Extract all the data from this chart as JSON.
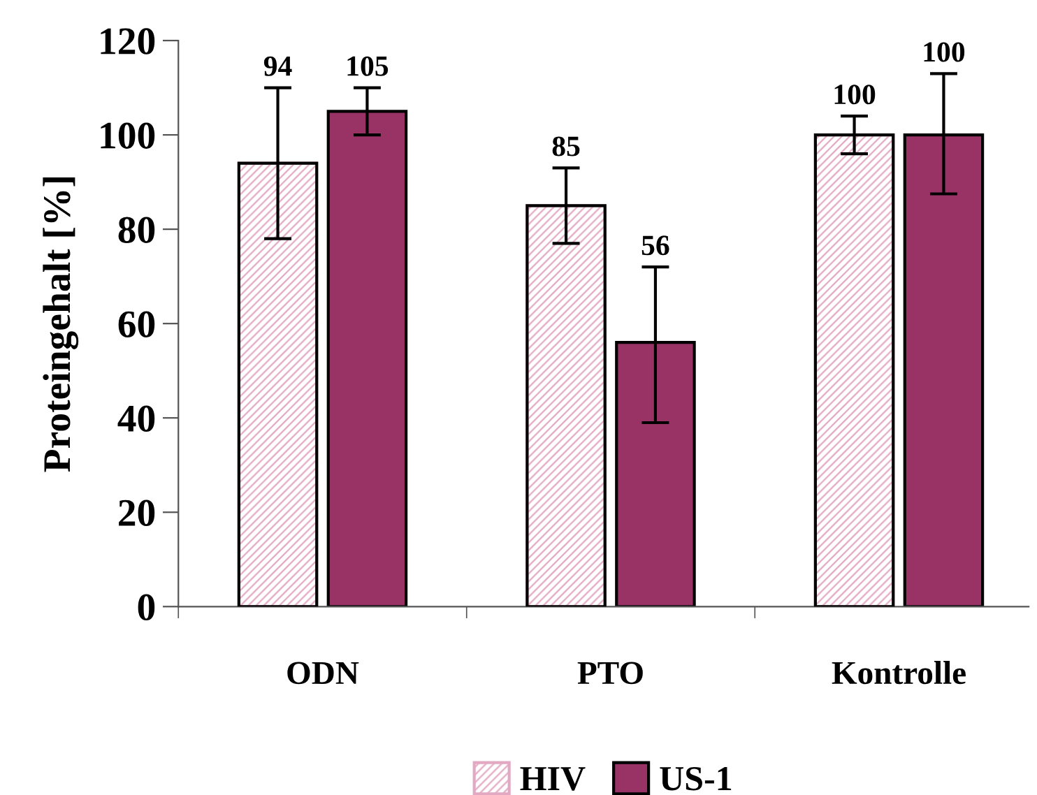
{
  "chart_data": {
    "type": "bar",
    "ylabel": "Proteingehalt [%]",
    "categories": [
      "ODN",
      "PTO",
      "Kontrolle"
    ],
    "series": [
      {
        "name": "HIV",
        "color": "#e3a9c3",
        "values": [
          94,
          85,
          100
        ],
        "errors": [
          [
            78,
            110
          ],
          [
            77,
            93
          ],
          [
            96,
            104
          ]
        ]
      },
      {
        "name": "US-1",
        "color": "#993366",
        "values": [
          105,
          56,
          100
        ],
        "errors": [
          [
            100,
            110
          ],
          [
            39,
            72
          ],
          [
            87.5,
            113
          ]
        ]
      }
    ],
    "ylim": [
      0,
      120
    ],
    "yticks": [
      0,
      20,
      40,
      60,
      80,
      100,
      120
    ],
    "data_labels": true,
    "legend": "bottom",
    "grid": false
  }
}
